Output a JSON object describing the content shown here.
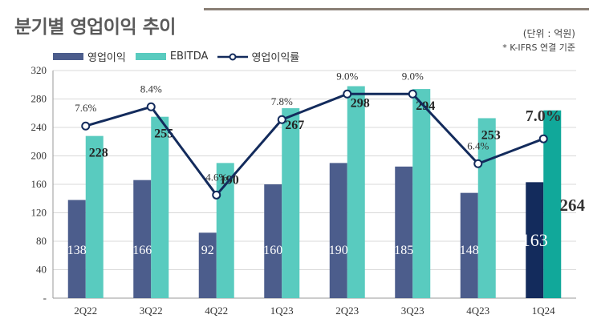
{
  "title": "분기별 영업이익 추이",
  "unit_note": "(단위 : 억원)",
  "standard_note": "* K-IFRS 연결 기준",
  "colors": {
    "op_profit": "#4c5d8c",
    "op_profit_latest": "#132b5c",
    "ebitda": "#59cbbf",
    "ebitda_latest": "#11a89a",
    "margin_line": "#132b5c",
    "grid": "#d9d9d9"
  },
  "chart_data": {
    "type": "bar",
    "title": "분기별 영업이익 추이",
    "xlabel": "",
    "ylabel": "",
    "categories": [
      "2Q22",
      "3Q22",
      "4Q22",
      "1Q23",
      "2Q23",
      "3Q23",
      "4Q23",
      "1Q24"
    ],
    "ylim": [
      0,
      320
    ],
    "yticks": [
      {
        "value": 0,
        "label": "-"
      },
      {
        "value": 40,
        "label": "40"
      },
      {
        "value": 80,
        "label": "80"
      },
      {
        "value": 120,
        "label": "120"
      },
      {
        "value": 160,
        "label": "160"
      },
      {
        "value": 200,
        "label": "200"
      },
      {
        "value": 240,
        "label": "240"
      },
      {
        "value": 280,
        "label": "280"
      },
      {
        "value": 320,
        "label": "320"
      }
    ],
    "grid": true,
    "legend": "top-left",
    "series": [
      {
        "name": "영업이익",
        "type": "bar",
        "values": [
          138,
          166,
          92,
          160,
          190,
          185,
          148,
          163
        ]
      },
      {
        "name": "EBITDA",
        "type": "bar",
        "values": [
          228,
          255,
          190,
          267,
          298,
          294,
          253,
          264
        ]
      },
      {
        "name": "영업이익률",
        "type": "line",
        "values": [
          7.6,
          8.4,
          4.6,
          7.8,
          9.0,
          9.0,
          6.4,
          7.0
        ],
        "labels": [
          "7.6%",
          "8.4%",
          "4.6%",
          "7.8%",
          "9.0%",
          "9.0%",
          "6.4%",
          "7.0%"
        ],
        "plot_levels": [
          242,
          269,
          145,
          251,
          287,
          287,
          189,
          224
        ]
      }
    ]
  }
}
